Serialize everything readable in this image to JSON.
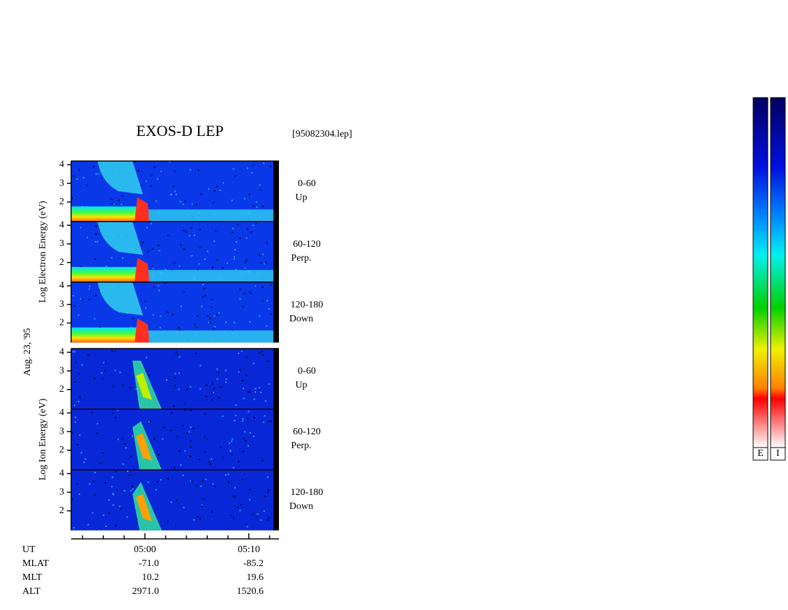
{
  "title": "EXOS-D LEP",
  "file": "[95082304.lep]",
  "date": "Aug. 23, '95",
  "chart_data": {
    "type": "spectrogram",
    "xlim": [
      2.9,
      22.9
    ],
    "xticks": [
      {
        "value": 10,
        "label": "05:00"
      },
      {
        "value": 20,
        "label": "05:10"
      }
    ],
    "xminor": [
      4,
      6,
      8,
      12,
      14,
      16,
      18,
      22
    ],
    "ylim": [
      0.95,
      4.2
    ],
    "yticks": [
      2,
      3,
      4
    ],
    "groups": [
      {
        "ylabel": "Log Electron Energy (eV)",
        "panels": [
          {
            "angle": "0-60",
            "direction": "Up"
          },
          {
            "angle": "60-120",
            "direction": "Perp."
          },
          {
            "angle": "120-180",
            "direction": "Down"
          }
        ]
      },
      {
        "ylabel": "Log Ion Energy (eV)",
        "panels": [
          {
            "angle": "0-60",
            "direction": "Up"
          },
          {
            "angle": "60-120",
            "direction": "Perp."
          },
          {
            "angle": "120-180",
            "direction": "Down"
          }
        ]
      }
    ]
  },
  "orbit": {
    "ut": "UT",
    "rows": [
      [
        "MLAT",
        "-71.0",
        "-85.2"
      ],
      [
        "MLT",
        "10.2",
        "19.6"
      ],
      [
        "ALT",
        "2971.0",
        "1520.6"
      ]
    ]
  },
  "colorbars": [
    "E",
    "I"
  ]
}
